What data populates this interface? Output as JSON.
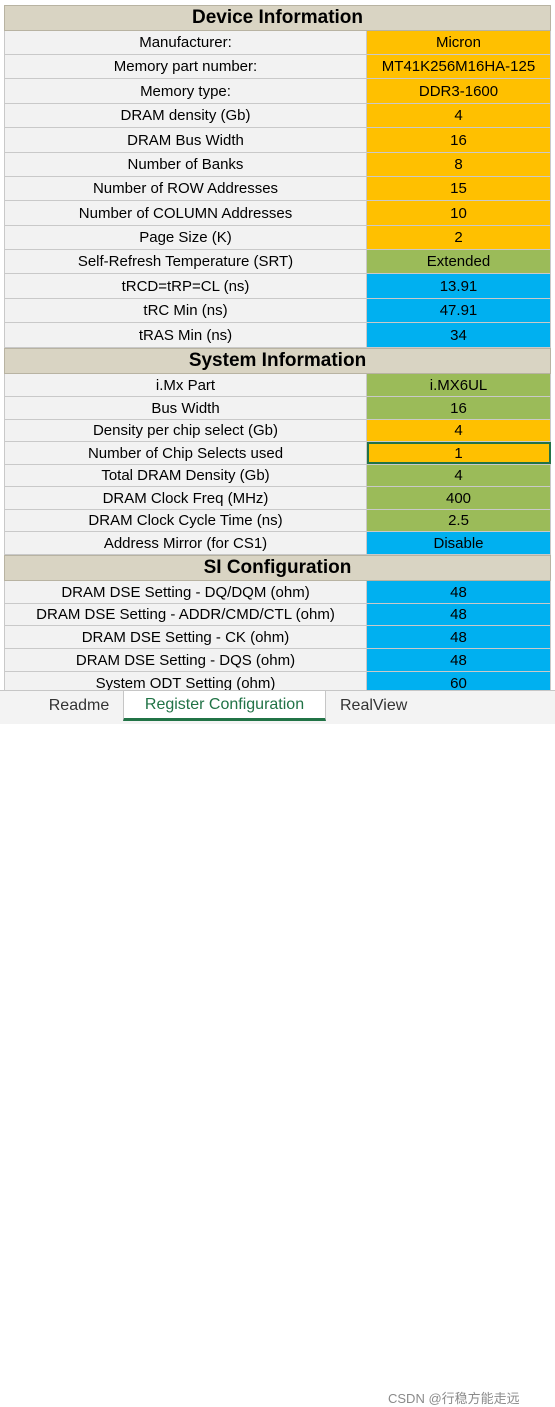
{
  "sections": [
    {
      "title": "Device Information",
      "rows": [
        {
          "label": "Manufacturer:",
          "value": "Micron",
          "color": "orange"
        },
        {
          "label": "Memory part number:",
          "value": "MT41K256M16HA-125",
          "color": "orange"
        },
        {
          "label": "Memory type:",
          "value": "DDR3-1600",
          "color": "orange"
        },
        {
          "label": "DRAM density (Gb)",
          "value": "4",
          "color": "orange"
        },
        {
          "label": "DRAM Bus Width",
          "value": "16",
          "color": "orange"
        },
        {
          "label": "Number of Banks",
          "value": "8",
          "color": "orange"
        },
        {
          "label": "Number of ROW Addresses",
          "value": "15",
          "color": "orange"
        },
        {
          "label": "Number of COLUMN Addresses",
          "value": "10",
          "color": "orange"
        },
        {
          "label": "Page Size (K)",
          "value": "2",
          "color": "orange"
        },
        {
          "label": "Self-Refresh Temperature (SRT)",
          "value": "Extended",
          "color": "green"
        },
        {
          "label": "tRCD=tRP=CL (ns)",
          "value": "13.91",
          "color": "blue"
        },
        {
          "label": "tRC Min (ns)",
          "value": "47.91",
          "color": "blue"
        },
        {
          "label": "tRAS Min (ns)",
          "value": "34",
          "color": "blue"
        }
      ]
    },
    {
      "title": "System Information",
      "rows": [
        {
          "label": "i.Mx Part",
          "value": "i.MX6UL",
          "color": "green"
        },
        {
          "label": "Bus Width",
          "value": "16",
          "color": "green"
        },
        {
          "label": "Density per chip select (Gb)",
          "value": "4",
          "color": "orange"
        },
        {
          "label": "Number of Chip Selects used",
          "value": "1",
          "color": "orange",
          "selected": true
        },
        {
          "label": "Total DRAM Density (Gb)",
          "value": "4",
          "color": "green"
        },
        {
          "label": "DRAM Clock Freq (MHz)",
          "value": "400",
          "color": "green"
        },
        {
          "label": "DRAM Clock Cycle Time (ns)",
          "value": "2.5",
          "color": "green"
        },
        {
          "label": "Address Mirror (for CS1)",
          "value": "Disable",
          "color": "blue"
        }
      ]
    },
    {
      "title": "SI Configuration",
      "rows": [
        {
          "label": "DRAM DSE Setting - DQ/DQM (ohm)",
          "value": "48",
          "color": "blue"
        },
        {
          "label": "DRAM DSE Setting - ADDR/CMD/CTL (ohm)",
          "value": "48",
          "color": "blue"
        },
        {
          "label": "DRAM DSE Setting - CK (ohm)",
          "value": "48",
          "color": "blue"
        },
        {
          "label": "DRAM DSE Setting - DQS (ohm)",
          "value": "48",
          "color": "blue"
        },
        {
          "label": "System ODT Setting (ohm)",
          "value": "60",
          "color": "blue"
        }
      ]
    }
  ],
  "tabs": [
    "Readme",
    "Register Configuration",
    "RealView"
  ],
  "active_tab": "Register Configuration",
  "watermark": "CSDN @行稳方能走远",
  "colors": {
    "orange": "#ffc000",
    "green": "#9bbb59",
    "blue": "#00b0f0",
    "header": "#d9d4c3",
    "label": "#f2f2f2"
  }
}
